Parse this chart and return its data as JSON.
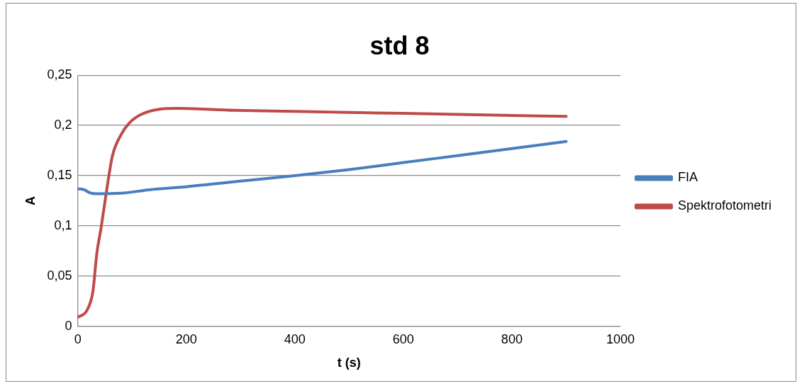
{
  "chart_data": {
    "type": "line",
    "title": "std 8",
    "xlabel": "t (s)",
    "ylabel": "A",
    "xlim": [
      0,
      1000
    ],
    "xticks": [
      0,
      200,
      400,
      600,
      800,
      1000
    ],
    "ylim": [
      0,
      0.25
    ],
    "yticks": [
      {
        "value": 0,
        "label": "0"
      },
      {
        "value": 0.05,
        "label": "0,05"
      },
      {
        "value": 0.1,
        "label": "0,1"
      },
      {
        "value": 0.15,
        "label": "0,15"
      },
      {
        "value": 0.2,
        "label": "0,2"
      },
      {
        "value": 0.25,
        "label": "0,25"
      }
    ],
    "grid": "y",
    "legend": "right",
    "marker": "none",
    "line_style": "solid",
    "series": [
      {
        "name": "FIA",
        "color": "#4a7ebb",
        "x": [
          0,
          12,
          22,
          38,
          80,
          132,
          200,
          289,
          400,
          500,
          600,
          700,
          800,
          900
        ],
        "values": [
          0.137,
          0.136,
          0.133,
          0.132,
          0.1325,
          0.136,
          0.139,
          0.144,
          0.15,
          0.156,
          0.163,
          0.17,
          0.177,
          0.184
        ]
      },
      {
        "name": "Spektrofotometri",
        "color": "#be4b48",
        "x": [
          0,
          17,
          28,
          35,
          43,
          54,
          64,
          80,
          96,
          117,
          148,
          184,
          289,
          400,
          500,
          600,
          700,
          800,
          900
        ],
        "values": [
          0.009,
          0.016,
          0.035,
          0.072,
          0.098,
          0.138,
          0.17,
          0.191,
          0.203,
          0.211,
          0.216,
          0.217,
          0.215,
          0.214,
          0.213,
          0.212,
          0.211,
          0.21,
          0.209
        ]
      }
    ]
  }
}
